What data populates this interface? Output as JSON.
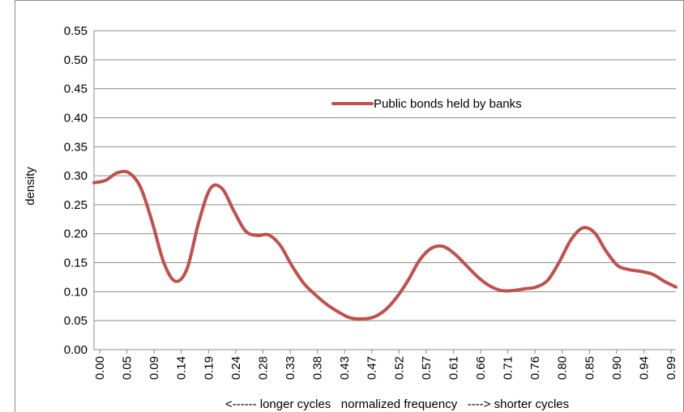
{
  "chart_data": {
    "type": "line",
    "title": "",
    "xlabel": "<------ longer cycles   normalized frequency   ----> shorter cycles",
    "ylabel": "density",
    "ylim": [
      0,
      0.55
    ],
    "xlim": [
      0,
      1.0
    ],
    "y_ticks": [
      "0.00",
      "0.05",
      "0.10",
      "0.15",
      "0.20",
      "0.25",
      "0.30",
      "0.35",
      "0.40",
      "0.45",
      "0.50",
      "0.55"
    ],
    "x_ticks": [
      "0.00",
      "0.05",
      "0.09",
      "0.14",
      "0.19",
      "0.24",
      "0.28",
      "0.33",
      "0.38",
      "0.43",
      "0.47",
      "0.52",
      "0.57",
      "0.61",
      "0.66",
      "0.71",
      "0.76",
      "0.80",
      "0.85",
      "0.90",
      "0.94",
      "0.99"
    ],
    "grid": "horizontal",
    "legend_position": "top-right",
    "series": [
      {
        "name": "Public bonds held by banks",
        "color": "#c0504d",
        "x": [
          0.0,
          0.02,
          0.04,
          0.06,
          0.08,
          0.1,
          0.12,
          0.14,
          0.16,
          0.18,
          0.2,
          0.22,
          0.24,
          0.26,
          0.28,
          0.3,
          0.32,
          0.34,
          0.36,
          0.38,
          0.4,
          0.42,
          0.44,
          0.46,
          0.48,
          0.5,
          0.52,
          0.54,
          0.56,
          0.58,
          0.6,
          0.62,
          0.64,
          0.66,
          0.68,
          0.7,
          0.72,
          0.74,
          0.76,
          0.78,
          0.8,
          0.82,
          0.84,
          0.86,
          0.88,
          0.9,
          0.92,
          0.94,
          0.96,
          0.98,
          1.0
        ],
        "values": [
          0.288,
          0.292,
          0.305,
          0.305,
          0.28,
          0.22,
          0.15,
          0.118,
          0.14,
          0.22,
          0.278,
          0.278,
          0.24,
          0.205,
          0.197,
          0.198,
          0.18,
          0.145,
          0.115,
          0.095,
          0.078,
          0.065,
          0.055,
          0.053,
          0.056,
          0.068,
          0.09,
          0.12,
          0.155,
          0.175,
          0.178,
          0.165,
          0.145,
          0.125,
          0.11,
          0.102,
          0.102,
          0.105,
          0.108,
          0.12,
          0.152,
          0.19,
          0.21,
          0.202,
          0.17,
          0.145,
          0.138,
          0.135,
          0.13,
          0.118,
          0.108
        ]
      }
    ]
  }
}
